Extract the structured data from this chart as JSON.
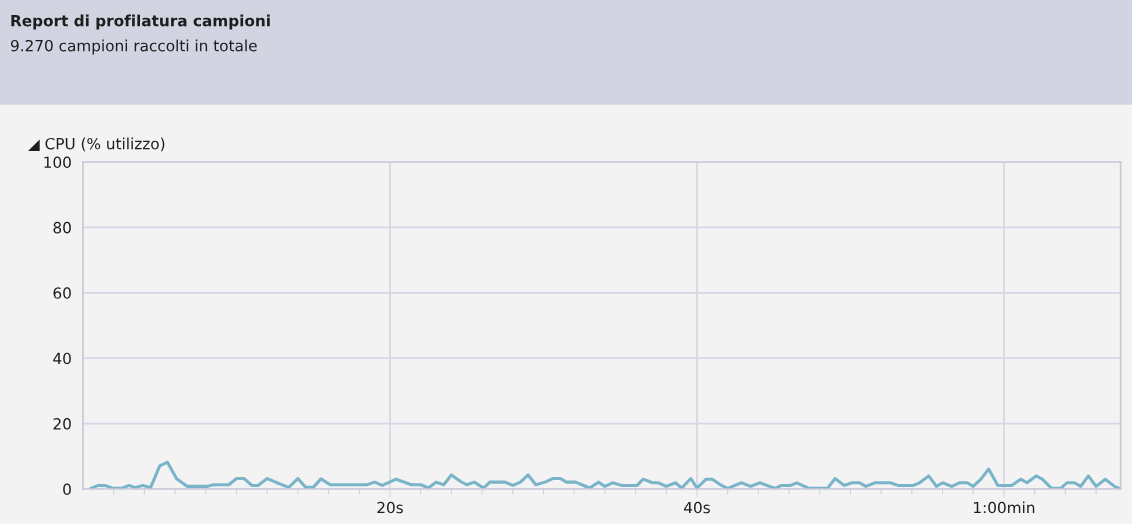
{
  "chart_data": {
    "type": "line",
    "title": "Report di profilatura campioni",
    "subtitle": "9.270 campioni raccolti in totale",
    "ylabel": "◢ CPU (% utilizzo)",
    "x": [
      0.5,
      1.0,
      1.4,
      2.0,
      2.5,
      3.0,
      3.4,
      3.9,
      4.4,
      5.0,
      5.5,
      6.1,
      6.8,
      8.1,
      8.5,
      9.5,
      10.0,
      10.5,
      11.0,
      11.4,
      12.0,
      12.6,
      13.4,
      14.0,
      14.5,
      15.0,
      15.5,
      16.1,
      18.5,
      19.0,
      19.5,
      20.4,
      21.4,
      22.0,
      22.5,
      23.0,
      23.5,
      24.0,
      24.6,
      25.0,
      25.5,
      26.1,
      26.5,
      27.5,
      28.0,
      28.5,
      29.0,
      29.5,
      30.1,
      30.6,
      31.1,
      31.5,
      32.1,
      32.5,
      33.0,
      33.6,
      34.0,
      34.5,
      35.1,
      36.1,
      36.5,
      37.1,
      37.5,
      38.0,
      38.6,
      39.0,
      39.6,
      40.0,
      40.6,
      41.0,
      41.6,
      42.0,
      42.9,
      43.5,
      44.1,
      45.1,
      45.5,
      46.1,
      46.5,
      47.3,
      48.5,
      49.0,
      49.6,
      50.1,
      50.6,
      51.0,
      51.6,
      52.6,
      53.1,
      54.1,
      54.5,
      55.1,
      55.6,
      56.0,
      56.6,
      57.1,
      57.6,
      58.0,
      58.5,
      59.0,
      59.6,
      60.5,
      61.1,
      61.5,
      62.1,
      62.5,
      63.1,
      63.7,
      64.1,
      64.6,
      65.0,
      65.5,
      66.0,
      66.6,
      67.2,
      67.6
    ],
    "series": [
      {
        "color": "#7ab4c9",
        "values": [
          0.2,
          1.1,
          1.1,
          0.2,
          0.2,
          1.1,
          0.4,
          1.1,
          0.4,
          7.1,
          8.2,
          3.1,
          0.8,
          0.8,
          1.3,
          1.3,
          3.2,
          3.2,
          1.1,
          1.1,
          3.2,
          2.0,
          0.5,
          3.2,
          0.5,
          0.5,
          3.1,
          1.3,
          1.3,
          2.1,
          1.1,
          3.0,
          1.3,
          1.3,
          0.3,
          2.1,
          1.3,
          4.3,
          2.3,
          1.3,
          2.1,
          0.3,
          2.1,
          2.1,
          1.1,
          2.1,
          4.3,
          1.3,
          2.1,
          3.2,
          3.2,
          2.1,
          2.1,
          1.3,
          0.3,
          2.1,
          0.8,
          1.9,
          1.1,
          1.1,
          3.0,
          1.9,
          1.9,
          0.8,
          1.9,
          0.3,
          3.2,
          0.3,
          3.0,
          3.0,
          1.1,
          0.2,
          1.9,
          0.8,
          1.9,
          0.2,
          1.1,
          1.1,
          1.9,
          0.2,
          0.2,
          3.2,
          1.1,
          1.9,
          1.9,
          0.8,
          1.9,
          1.9,
          1.1,
          1.1,
          1.9,
          4.0,
          0.8,
          1.9,
          0.8,
          1.9,
          1.9,
          0.8,
          3.0,
          6.1,
          1.1,
          1.1,
          3.0,
          1.9,
          4.0,
          3.0,
          0.2,
          0.2,
          1.9,
          1.9,
          0.8,
          4.0,
          0.8,
          3.0,
          0.8,
          0.0
        ]
      }
    ],
    "xlim": [
      0,
      67.6
    ],
    "ylim": [
      0,
      100
    ],
    "xticks": [
      {
        "value": 2,
        "label": null
      },
      {
        "value": 4,
        "label": null
      },
      {
        "value": 6,
        "label": null
      },
      {
        "value": 8,
        "label": null
      },
      {
        "value": 10,
        "label": null
      },
      {
        "value": 12,
        "label": null
      },
      {
        "value": 14,
        "label": null
      },
      {
        "value": 16,
        "label": null
      },
      {
        "value": 18,
        "label": null
      },
      {
        "value": 20,
        "label": "20s"
      },
      {
        "value": 22,
        "label": null
      },
      {
        "value": 24,
        "label": null
      },
      {
        "value": 26,
        "label": null
      },
      {
        "value": 28,
        "label": null
      },
      {
        "value": 30,
        "label": null
      },
      {
        "value": 32,
        "label": null
      },
      {
        "value": 34,
        "label": null
      },
      {
        "value": 36,
        "label": null
      },
      {
        "value": 38,
        "label": null
      },
      {
        "value": 40,
        "label": "40s"
      },
      {
        "value": 42,
        "label": null
      },
      {
        "value": 44,
        "label": null
      },
      {
        "value": 46,
        "label": null
      },
      {
        "value": 48,
        "label": null
      },
      {
        "value": 50,
        "label": null
      },
      {
        "value": 52,
        "label": null
      },
      {
        "value": 54,
        "label": null
      },
      {
        "value": 56,
        "label": null
      },
      {
        "value": 58,
        "label": null
      },
      {
        "value": 60,
        "label": "1:00min"
      },
      {
        "value": 62,
        "label": null
      },
      {
        "value": 64,
        "label": null
      },
      {
        "value": 66,
        "label": null
      }
    ],
    "yticks": [
      0,
      20,
      40,
      60,
      80,
      100
    ],
    "grid": true,
    "marker": "none",
    "line_style": "solid"
  }
}
